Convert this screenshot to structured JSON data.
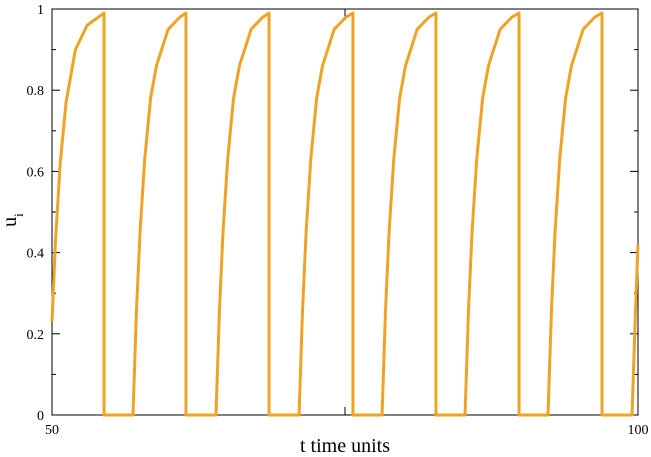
{
  "chart_data": {
    "type": "line",
    "xlabel": "t time units",
    "ylabel": "u",
    "ylabel_subscript": "i",
    "x": [
      50,
      50.3,
      50.7,
      51.2,
      52,
      53,
      54.44,
      54.44,
      56.91,
      57.21,
      57.51,
      57.91,
      58.41,
      58.91,
      59.91,
      60.91,
      61.43,
      61.43,
      63.99,
      64.29,
      64.59,
      64.99,
      65.49,
      65.99,
      66.99,
      67.99,
      68.52,
      68.52,
      71.08,
      71.38,
      71.68,
      72.08,
      72.58,
      73.08,
      74.08,
      75.08,
      75.68,
      75.68,
      78.16,
      78.46,
      78.76,
      79.16,
      79.66,
      80.16,
      81.16,
      82.16,
      82.76,
      82.76,
      85.24,
      85.54,
      85.84,
      86.24,
      86.74,
      87.24,
      88.24,
      89.24,
      89.85,
      89.85,
      92.32,
      92.62,
      92.92,
      93.32,
      93.82,
      94.32,
      95.32,
      96.32,
      96.93,
      96.93,
      99.49,
      99.79,
      100
    ],
    "series": [
      {
        "color": "#eea324",
        "values": [
          0.23,
          0.43,
          0.62,
          0.77,
          0.9,
          0.96,
          0.99,
          0,
          0,
          0.26,
          0.45,
          0.63,
          0.78,
          0.86,
          0.95,
          0.98,
          0.99,
          0,
          0,
          0.26,
          0.45,
          0.63,
          0.78,
          0.86,
          0.95,
          0.98,
          0.99,
          0,
          0,
          0.26,
          0.45,
          0.63,
          0.78,
          0.86,
          0.95,
          0.98,
          0.99,
          0,
          0,
          0.26,
          0.45,
          0.63,
          0.78,
          0.86,
          0.95,
          0.98,
          0.99,
          0,
          0,
          0.26,
          0.45,
          0.63,
          0.78,
          0.86,
          0.95,
          0.98,
          0.99,
          0,
          0,
          0.26,
          0.45,
          0.63,
          0.78,
          0.86,
          0.95,
          0.98,
          0.99,
          0,
          0,
          0.26,
          0.42
        ]
      }
    ],
    "xlim": [
      50,
      100
    ],
    "xticks": [
      50,
      100
    ],
    "xminor_ticks": [
      75
    ],
    "ylim": [
      0,
      1
    ],
    "yticks": [
      0,
      0.2,
      0.4,
      0.6,
      0.8,
      1
    ],
    "yminor_ticks": [
      0.1,
      0.3,
      0.5,
      0.7,
      0.9
    ]
  }
}
